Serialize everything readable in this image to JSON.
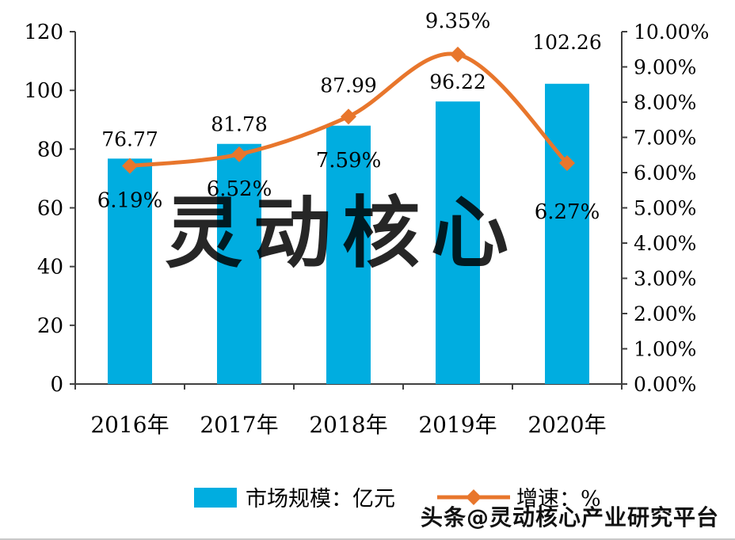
{
  "chart_data": {
    "type": "bar",
    "subtype": "combo-bar-line",
    "categories": [
      "2016年",
      "2017年",
      "2018年",
      "2019年",
      "2020年"
    ],
    "series": [
      {
        "name": "市场规模：亿元",
        "type": "bar",
        "axis": "left",
        "color": "#00ADE0",
        "values": [
          76.77,
          81.78,
          87.99,
          96.22,
          102.26
        ],
        "labels": [
          "76.77",
          "81.78",
          "87.99",
          "96.22",
          "102.26"
        ]
      },
      {
        "name": "增速：%",
        "type": "line",
        "axis": "right",
        "color": "#E8762C",
        "marker": "diamond",
        "values": [
          6.19,
          6.52,
          7.59,
          9.35,
          6.27
        ],
        "labels": [
          "6.19%",
          "6.52%",
          "7.59%",
          "9.35%",
          "6.27%"
        ]
      }
    ],
    "left_axis": {
      "min": 0,
      "max": 120,
      "step": 20,
      "tick_labels": [
        "0",
        "20",
        "40",
        "60",
        "80",
        "100",
        "120"
      ]
    },
    "right_axis": {
      "min": 0,
      "max": 10,
      "step": 1,
      "tick_labels": [
        "0.00%",
        "1.00%",
        "2.00%",
        "3.00%",
        "4.00%",
        "5.00%",
        "6.00%",
        "7.00%",
        "8.00%",
        "9.00%",
        "10.00%"
      ]
    },
    "grid": false,
    "legend_position": "bottom",
    "layout_hints": {
      "bar_label_dy": [
        -16,
        -16,
        -42,
        -16,
        -44
      ],
      "line_label_dy": [
        52,
        52,
        64,
        -34,
        70
      ]
    }
  },
  "legend": {
    "items": [
      {
        "label": "市场规模：亿元",
        "swatch": "bar",
        "color": "#00ADE0"
      },
      {
        "label": "增速：%",
        "swatch": "line-diamond",
        "color": "#E8762C"
      }
    ]
  },
  "watermark": {
    "text": "灵动核心",
    "color": "#e6e6e6"
  },
  "footer": {
    "text": "头条@灵动核心产业研究平台"
  },
  "colors": {
    "bar": "#00ADE0",
    "line": "#E8762C",
    "axis": "#404040",
    "text": "#000000"
  }
}
